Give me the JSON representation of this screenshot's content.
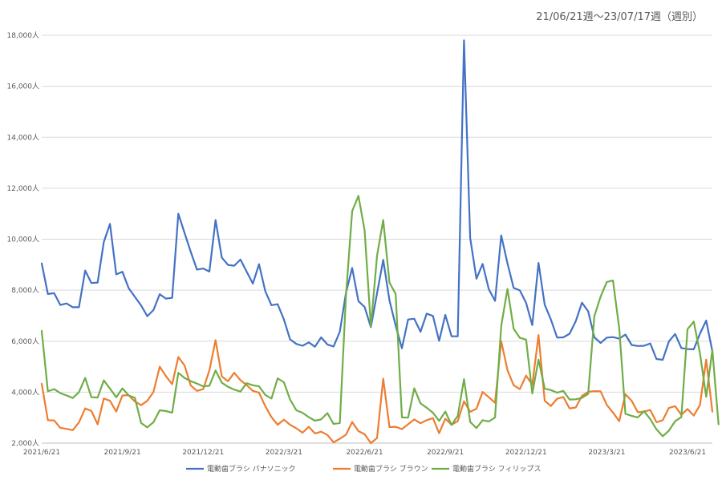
{
  "chart_data": {
    "type": "line",
    "title": "",
    "subtitle": "21/06/21週〜23/07/17週（週別）",
    "xlabel": "",
    "ylabel": "",
    "ylim": [
      2000,
      18000
    ],
    "y_ticks": [
      2000,
      4000,
      6000,
      8000,
      10000,
      12000,
      14000,
      16000,
      18000
    ],
    "y_tick_labels": [
      "2,000人",
      "4,000人",
      "6,000人",
      "8,000人",
      "10,000人",
      "12,000人",
      "14,000人",
      "16,000人",
      "18,000人"
    ],
    "x_ticks": [
      "2021/6/21",
      "2021/9/21",
      "2021/12/21",
      "2022/3/21",
      "2022/6/21",
      "2022/9/21",
      "2022/12/21",
      "2023/3/21",
      "2023/6/21"
    ],
    "x_tick_week_index": [
      0,
      13,
      26,
      39,
      52,
      65,
      78,
      91,
      104
    ],
    "grid": true,
    "legend_position": "bottom",
    "series": [
      {
        "name": "電動歯ブラシ パナソニック",
        "color": "#4472c4",
        "values": [
          9050,
          7850,
          7880,
          7420,
          7480,
          7330,
          7330,
          8770,
          8280,
          8300,
          9890,
          10600,
          8620,
          8720,
          8080,
          7740,
          7400,
          6980,
          7220,
          7840,
          7670,
          7700,
          11000,
          10250,
          9500,
          8810,
          8850,
          8730,
          10750,
          9280,
          8990,
          8960,
          9200,
          8730,
          8260,
          9020,
          7960,
          7410,
          7450,
          6850,
          6070,
          5890,
          5820,
          5950,
          5780,
          6150,
          5870,
          5790,
          6370,
          7900,
          8870,
          7570,
          7340,
          6550,
          7880,
          9190,
          7600,
          6610,
          5720,
          6850,
          6880,
          6370,
          7080,
          6990,
          6010,
          7030,
          6190,
          6190,
          17800,
          10050,
          8450,
          9030,
          8040,
          7580,
          10150,
          9050,
          8090,
          7990,
          7500,
          6630,
          9070,
          7430,
          6850,
          6140,
          6150,
          6290,
          6780,
          7510,
          7170,
          6150,
          5930,
          6140,
          6160,
          6100,
          6260,
          5850,
          5810,
          5820,
          5910,
          5300,
          5270,
          5990,
          6280,
          5730,
          5690,
          5680,
          6290,
          6810,
          5600
        ]
      },
      {
        "name": "電動歯ブラシ ブラウン",
        "color": "#ed7d31",
        "values": [
          4330,
          2900,
          2890,
          2600,
          2560,
          2510,
          2810,
          3360,
          3260,
          2740,
          3750,
          3660,
          3240,
          3870,
          3880,
          3630,
          3490,
          3660,
          4010,
          5000,
          4630,
          4310,
          5380,
          5050,
          4260,
          4050,
          4120,
          4850,
          6040,
          4620,
          4430,
          4760,
          4470,
          4280,
          4050,
          3980,
          3450,
          3020,
          2720,
          2920,
          2720,
          2580,
          2410,
          2640,
          2380,
          2450,
          2320,
          2030,
          2170,
          2330,
          2830,
          2470,
          2350,
          2000,
          2200,
          4530,
          2630,
          2640,
          2550,
          2740,
          2930,
          2780,
          2900,
          2980,
          2390,
          2960,
          2720,
          2860,
          3640,
          3230,
          3350,
          4010,
          3800,
          3580,
          6000,
          4860,
          4270,
          4120,
          4650,
          4290,
          6240,
          3660,
          3460,
          3740,
          3810,
          3360,
          3400,
          3850,
          4010,
          4040,
          4030,
          3500,
          3200,
          2860,
          3920,
          3660,
          3210,
          3240,
          3300,
          2820,
          2900,
          3380,
          3450,
          3110,
          3340,
          3080,
          3490,
          5280,
          3240
        ]
      },
      {
        "name": "電動歯ブラシ フィリップス",
        "color": "#70ad47",
        "values": [
          6400,
          4030,
          4120,
          3960,
          3870,
          3770,
          4000,
          4560,
          3800,
          3790,
          4460,
          4140,
          3800,
          4150,
          3870,
          3780,
          2790,
          2620,
          2820,
          3290,
          3260,
          3190,
          4760,
          4560,
          4430,
          4340,
          4230,
          4250,
          4850,
          4370,
          4210,
          4100,
          4020,
          4350,
          4270,
          4230,
          3890,
          3750,
          4540,
          4390,
          3710,
          3290,
          3190,
          3020,
          2880,
          2930,
          3180,
          2750,
          2790,
          7800,
          11100,
          11700,
          10350,
          6570,
          9350,
          10750,
          8300,
          7850,
          3010,
          3000,
          4150,
          3560,
          3390,
          3190,
          2870,
          3240,
          2710,
          3070,
          4510,
          2830,
          2590,
          2900,
          2850,
          3010,
          6600,
          8050,
          6490,
          6130,
          6060,
          3950,
          5280,
          4140,
          4080,
          3980,
          4050,
          3710,
          3720,
          3780,
          3930,
          6980,
          7750,
          8320,
          8380,
          6500,
          3150,
          3070,
          3010,
          3250,
          2940,
          2540,
          2270,
          2490,
          2860,
          3020,
          6470,
          6770,
          5530,
          3820,
          5660,
          2740
        ]
      }
    ]
  }
}
